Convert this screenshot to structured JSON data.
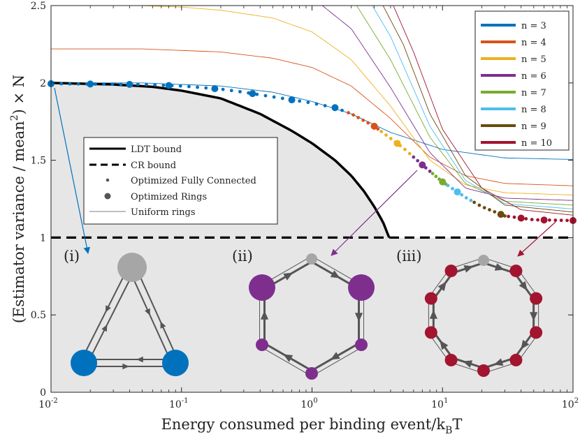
{
  "chart_data": {
    "type": "line",
    "xlabel": "Energy consumed per binding event/k",
    "xlabel_sub": "B",
    "xlabel_tail": "T",
    "ylabel_pre": "(Estimator variance / mean",
    "ylabel_sup": "2",
    "ylabel_post": ") × N",
    "xscale": "log",
    "xlim": [
      0.01,
      100
    ],
    "ylim": [
      0,
      2.5
    ],
    "x_ticks": [
      {
        "value": 0.01,
        "base": "10",
        "exp": "-2"
      },
      {
        "value": 0.1,
        "base": "10",
        "exp": "-1"
      },
      {
        "value": 1,
        "base": "10",
        "exp": "0"
      },
      {
        "value": 10,
        "base": "10",
        "exp": "1"
      },
      {
        "value": 100,
        "base": "10",
        "exp": "2"
      }
    ],
    "y_ticks": [
      {
        "value": 0,
        "label": "0"
      },
      {
        "value": 0.5,
        "label": "0.5"
      },
      {
        "value": 1,
        "label": "1"
      },
      {
        "value": 1.5,
        "label": "1.5"
      },
      {
        "value": 2,
        "label": "2"
      },
      {
        "value": 2.5,
        "label": "2.5"
      }
    ],
    "bounds": [
      {
        "name": "LDT bound",
        "style": "solid",
        "x": [
          0.01,
          0.03,
          0.06,
          0.1,
          0.2,
          0.4,
          0.7,
          1,
          1.5,
          2,
          2.5,
          3,
          3.5,
          3.9
        ],
        "y": [
          2.0,
          1.99,
          1.975,
          1.95,
          1.9,
          1.8,
          1.69,
          1.61,
          1.5,
          1.4,
          1.3,
          1.2,
          1.1,
          1.0
        ]
      },
      {
        "name": "CR bound",
        "style": "dashed",
        "x": [
          0.01,
          100
        ],
        "y": [
          1,
          1
        ]
      }
    ],
    "uniform_rings": [
      {
        "n": 3,
        "x": [
          0.01,
          0.05,
          0.1,
          0.2,
          0.5,
          1,
          2,
          4,
          10,
          30,
          100
        ],
        "y": [
          2.0,
          2.0,
          1.99,
          1.98,
          1.94,
          1.88,
          1.8,
          1.68,
          1.57,
          1.515,
          1.505
        ]
      },
      {
        "n": 4,
        "x": [
          0.01,
          0.05,
          0.1,
          0.2,
          0.5,
          1,
          2,
          4,
          8,
          15,
          30,
          100
        ],
        "y": [
          2.22,
          2.22,
          2.21,
          2.2,
          2.16,
          2.1,
          1.98,
          1.77,
          1.52,
          1.4,
          1.35,
          1.335
        ]
      },
      {
        "n": 5,
        "x": [
          0.01,
          0.05,
          0.1,
          0.2,
          0.5,
          1,
          2,
          4,
          8,
          15,
          30,
          100
        ],
        "y": [
          2.5,
          2.5,
          2.49,
          2.47,
          2.42,
          2.33,
          2.15,
          1.85,
          1.5,
          1.34,
          1.29,
          1.275
        ]
      },
      {
        "n": 6,
        "x": [
          1.2,
          2,
          4,
          8,
          15,
          30,
          100
        ],
        "y": [
          2.5,
          2.35,
          1.97,
          1.55,
          1.32,
          1.255,
          1.24
        ]
      },
      {
        "n": 7,
        "x": [
          2.2,
          4,
          8,
          15,
          30,
          100
        ],
        "y": [
          2.5,
          2.15,
          1.65,
          1.35,
          1.235,
          1.21
        ]
      },
      {
        "n": 8,
        "x": [
          2.9,
          4,
          8,
          15,
          30,
          100
        ],
        "y": [
          2.5,
          2.3,
          1.72,
          1.37,
          1.22,
          1.185
        ]
      },
      {
        "n": 9,
        "x": [
          3.5,
          5,
          8,
          15,
          30,
          100
        ],
        "y": [
          2.5,
          2.25,
          1.8,
          1.4,
          1.21,
          1.165
        ]
      },
      {
        "n": 10,
        "x": [
          4.2,
          6,
          10,
          20,
          40,
          100
        ],
        "y": [
          2.5,
          2.2,
          1.7,
          1.32,
          1.18,
          1.145
        ]
      }
    ],
    "optimized_envelope": {
      "x": [
        0.01,
        0.05,
        0.1,
        0.2,
        0.3,
        0.5,
        1,
        1.5,
        2,
        3,
        5,
        7,
        10,
        15,
        20,
        30,
        50,
        100
      ],
      "y": [
        1.995,
        1.99,
        1.98,
        1.96,
        1.94,
        1.91,
        1.87,
        1.84,
        1.8,
        1.72,
        1.58,
        1.47,
        1.36,
        1.26,
        1.2,
        1.14,
        1.115,
        1.11
      ]
    },
    "ring_markers": [
      {
        "n": 3,
        "x": [
          0.01,
          0.02,
          0.04,
          0.08,
          0.18,
          0.35,
          0.7,
          1.5
        ]
      },
      {
        "n": 4,
        "x": [
          3
        ]
      },
      {
        "n": 5,
        "x": [
          4.5
        ]
      },
      {
        "n": 6,
        "x": [
          7
        ]
      },
      {
        "n": 7,
        "x": [
          10
        ]
      },
      {
        "n": 8,
        "x": [
          13
        ]
      },
      {
        "n": 9,
        "x": [
          28
        ]
      },
      {
        "n": 10,
        "x": [
          40,
          60,
          100
        ]
      }
    ],
    "fully_connected_dots": [
      {
        "n": 3,
        "x_start": 0.012,
        "x_end": 1.7,
        "count": 34
      },
      {
        "n": 4,
        "x_start": 1.9,
        "x_end": 3.2,
        "count": 7
      },
      {
        "n": 5,
        "x_start": 3.4,
        "x_end": 5.6,
        "count": 7
      },
      {
        "n": 6,
        "x_start": 6,
        "x_end": 8,
        "count": 5
      },
      {
        "n": 7,
        "x_start": 8.4,
        "x_end": 10.6,
        "count": 5
      },
      {
        "n": 8,
        "x_start": 11,
        "x_end": 16.5,
        "count": 6
      },
      {
        "n": 9,
        "x_start": 17.5,
        "x_end": 30,
        "count": 7
      },
      {
        "n": 10,
        "x_start": 32,
        "x_end": 100,
        "count": 12
      }
    ],
    "legend_n": [
      {
        "n": 3,
        "label": "n = 3",
        "color": "#0072BD"
      },
      {
        "n": 4,
        "label": "n = 4",
        "color": "#D95319"
      },
      {
        "n": 5,
        "label": "n = 5",
        "color": "#EDB120"
      },
      {
        "n": 6,
        "label": "n = 6",
        "color": "#7E2F8E"
      },
      {
        "n": 7,
        "label": "n = 7",
        "color": "#77AC30"
      },
      {
        "n": 8,
        "label": "n = 8",
        "color": "#4DBEEE"
      },
      {
        "n": 9,
        "label": "n = 9",
        "color": "#6B4A0A"
      },
      {
        "n": 10,
        "label": "n = 10",
        "color": "#A2142F"
      }
    ],
    "legend_style": [
      {
        "label": "LDT bound",
        "kind": "solid"
      },
      {
        "label": "CR bound",
        "kind": "dashed"
      },
      {
        "label": "Optimized Fully Connected",
        "kind": "small-dot"
      },
      {
        "label": "Optimized Rings",
        "kind": "big-dot"
      },
      {
        "label": "Uniform rings",
        "kind": "thin-line"
      }
    ],
    "insets": [
      {
        "label": "(i)",
        "n": 3
      },
      {
        "label": "(ii)",
        "n": 6
      },
      {
        "label": "(iii)",
        "n": 10
      }
    ],
    "colors": {
      "shade": "#e6e6e6",
      "network": "#555555",
      "gray_node": "#a6a6a6"
    }
  }
}
